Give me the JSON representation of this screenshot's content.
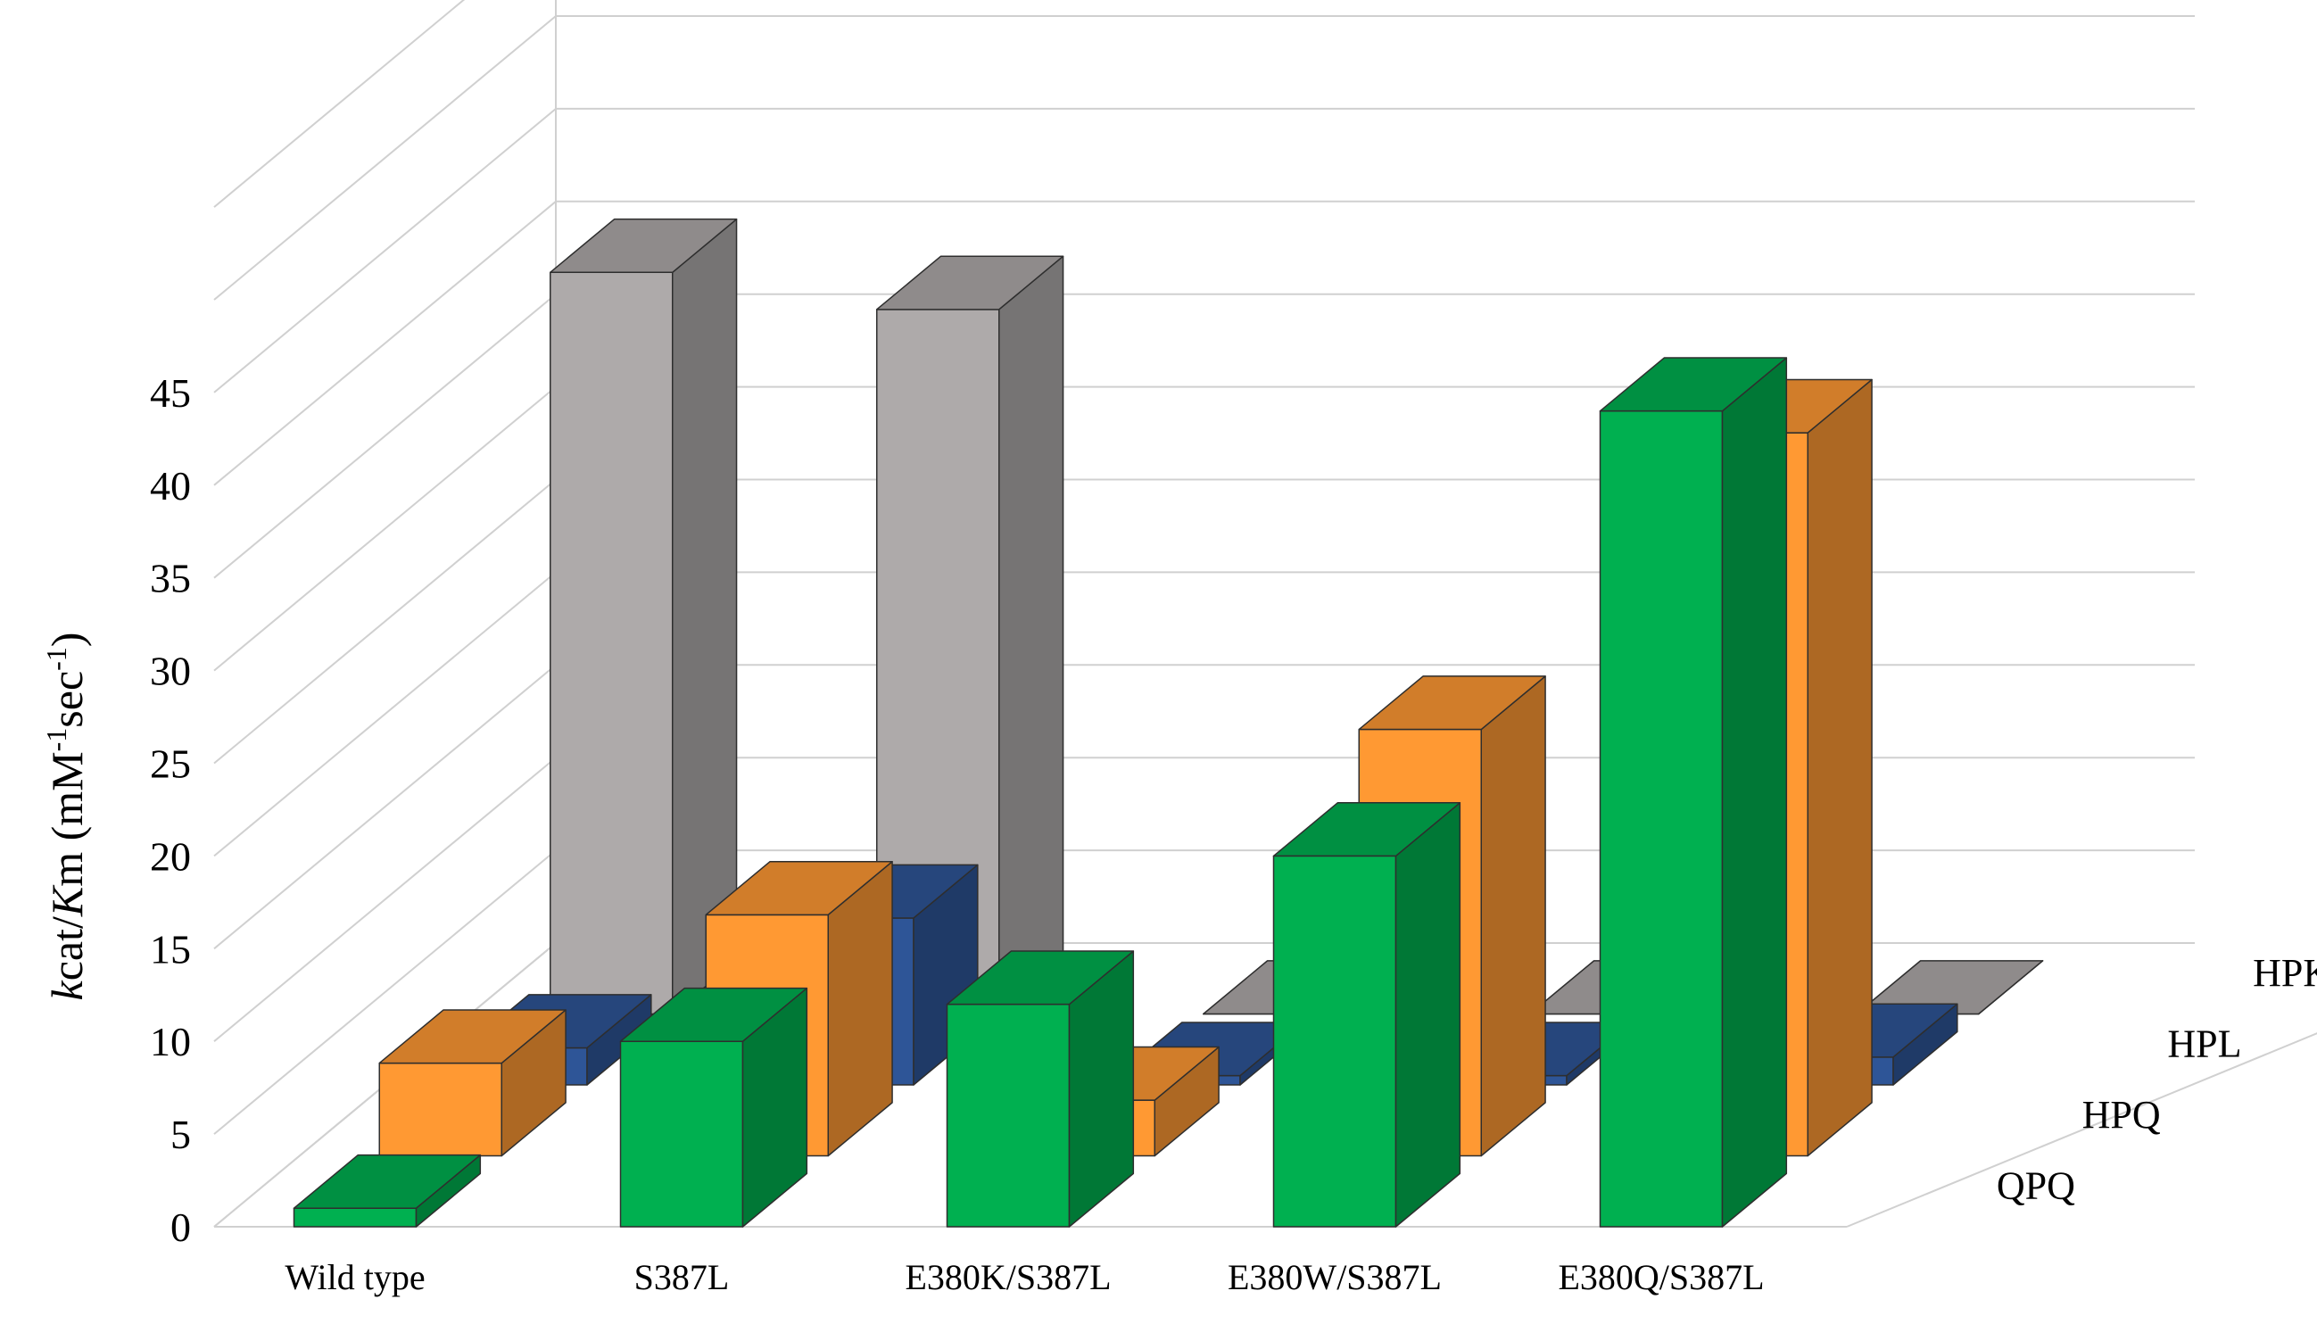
{
  "chart_data": {
    "type": "bar",
    "subtype": "3d-column",
    "title": "",
    "xlabel": "",
    "ylabel_parts": [
      "k",
      "cat/",
      "K",
      "m (mM",
      "-1",
      "sec",
      "-1",
      ")"
    ],
    "ylim": [
      0,
      45
    ],
    "yticks": [
      "0",
      "5",
      "10",
      "15",
      "20",
      "25",
      "30",
      "35",
      "40",
      "45"
    ],
    "grid": true,
    "legend": "none (series labelled on depth axis, right side)",
    "categories": [
      "Wild type",
      "S387L",
      "E380K/S387L",
      "E380W/S387L",
      "E380Q/S387L"
    ],
    "series": [
      {
        "name": "QPQ",
        "color": "#00b050",
        "values": [
          1,
          10,
          12,
          20,
          44
        ]
      },
      {
        "name": "HPQ",
        "color": "#ff9933",
        "values": [
          5,
          13,
          3,
          23,
          39
        ]
      },
      {
        "name": "HPL",
        "color": "#2e5597",
        "values": [
          2,
          9,
          0.5,
          0.5,
          1.5
        ]
      },
      {
        "name": "HPK",
        "color": "#aeaaaa",
        "values": [
          40,
          38,
          0,
          0,
          0
        ]
      }
    ]
  }
}
